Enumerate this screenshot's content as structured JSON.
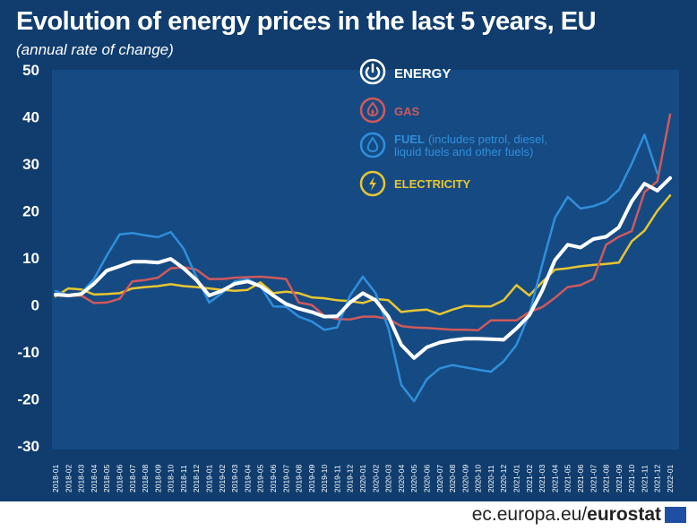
{
  "title": "Evolution of energy prices in the last 5 years, EU",
  "subtitle": "(annual rate of change)",
  "footer": {
    "site": "ec.europa.eu/",
    "brand": "eurostat"
  },
  "colors": {
    "background": "#103d6e",
    "plot": "#164a83",
    "energy": "#ffffff",
    "gas": "#d0595b",
    "fuel": "#2f8fdc",
    "electricity": "#e8c631"
  },
  "legend": [
    {
      "key": "energy",
      "label": "ENERGY",
      "note": "",
      "icon": "power-icon",
      "color": "#ffffff"
    },
    {
      "key": "gas",
      "label": "GAS",
      "note": "",
      "icon": "flame-icon",
      "color": "#d0595b"
    },
    {
      "key": "fuel",
      "label": "FUEL",
      "note": "(includes petrol, diesel,",
      "note2": "liquid fuels and other fuels)",
      "icon": "drop-icon",
      "color": "#2f8fdc"
    },
    {
      "key": "electricity",
      "label": "ELECTRICITY",
      "note": "",
      "icon": "lightning-icon",
      "color": "#e8c631"
    }
  ],
  "chart_data": {
    "type": "line",
    "title": "Evolution of energy prices in the last 5 years, EU",
    "subtitle": "(annual rate of change)",
    "ylim": [
      -30,
      50
    ],
    "yticks": [
      50,
      40,
      30,
      20,
      10,
      0,
      -10,
      -20,
      -30
    ],
    "grid": false,
    "legend_position": "top-right",
    "x": [
      "2018-01",
      "2018-02",
      "2018-03",
      "2018-04",
      "2018-05",
      "2018-06",
      "2018-07",
      "2018-08",
      "2018-09",
      "2018-10",
      "2018-11",
      "2018-12",
      "2019-01",
      "2019-02",
      "2019-03",
      "2019-04",
      "2019-05",
      "2019-06",
      "2019-07",
      "2019-08",
      "2019-09",
      "2019-10",
      "2019-11",
      "2019-12",
      "2020-01",
      "2020-02",
      "2020-03",
      "2020-04",
      "2020-05",
      "2020-06",
      "2020-07",
      "2020-08",
      "2020-09",
      "2020-10",
      "2020-11",
      "2020-12",
      "2021-01",
      "2021-02",
      "2021-03",
      "2021-04",
      "2021-05",
      "2021-06",
      "2021-07",
      "2021-08",
      "2021-09",
      "2021-10",
      "2021-11",
      "2021-12",
      "2022-01"
    ],
    "series": [
      {
        "name": "ENERGY",
        "key": "energy",
        "values": [
          2.2,
          2.0,
          2.3,
          4.5,
          7.3,
          8.2,
          9.2,
          9.2,
          9.0,
          9.8,
          7.8,
          5.3,
          2.0,
          3.0,
          4.5,
          5.0,
          4.0,
          2.0,
          0.2,
          -0.8,
          -1.5,
          -2.5,
          -2.4,
          0.5,
          2.5,
          1.0,
          -2.5,
          -8.5,
          -11.3,
          -9.0,
          -8.0,
          -7.5,
          -7.2,
          -7.2,
          -7.3,
          -7.4,
          -5.0,
          -2.2,
          3.0,
          9.5,
          12.8,
          12.2,
          14.0,
          14.5,
          16.5,
          22.0,
          25.8,
          24.3,
          27.0
        ]
      },
      {
        "name": "GAS",
        "key": "gas",
        "values": [
          2.0,
          1.9,
          2.0,
          0.4,
          0.5,
          1.3,
          5.0,
          5.3,
          5.8,
          7.8,
          8.0,
          7.5,
          5.5,
          5.5,
          5.8,
          5.9,
          6.0,
          5.8,
          5.5,
          0.5,
          0.0,
          -2.3,
          -3.0,
          -3.1,
          -2.5,
          -2.5,
          -3.0,
          -4.5,
          -4.8,
          -4.9,
          -5.1,
          -5.3,
          -5.3,
          -5.4,
          -3.3,
          -3.3,
          -3.3,
          -1.5,
          -0.5,
          1.5,
          3.8,
          4.2,
          5.5,
          12.8,
          14.5,
          15.7,
          24.0,
          26.3,
          40.5
        ]
      },
      {
        "name": "FUEL",
        "key": "fuel",
        "values": [
          3.0,
          2.0,
          2.5,
          5.5,
          10.5,
          15.0,
          15.3,
          14.8,
          14.4,
          15.5,
          12.0,
          6.0,
          0.5,
          2.5,
          5.0,
          5.5,
          4.0,
          -0.3,
          -0.4,
          -2.5,
          -3.5,
          -5.3,
          -4.8,
          2.0,
          6.0,
          2.5,
          -5.0,
          -17.0,
          -20.5,
          -15.8,
          -13.5,
          -12.8,
          -13.3,
          -13.8,
          -14.2,
          -12.0,
          -8.5,
          -2.0,
          8.5,
          18.5,
          23.0,
          20.5,
          21.0,
          22.0,
          24.5,
          30.0,
          36.2,
          28.0,
          null
        ]
      },
      {
        "name": "ELECTRICITY",
        "key": "electricity",
        "values": [
          1.8,
          3.5,
          3.3,
          2.2,
          2.3,
          2.5,
          3.5,
          3.8,
          4.0,
          4.4,
          4.0,
          3.8,
          3.5,
          3.2,
          3.0,
          3.2,
          4.8,
          2.5,
          2.8,
          2.5,
          1.6,
          1.4,
          1.0,
          0.8,
          0.4,
          1.3,
          1.0,
          -1.5,
          -1.2,
          -1.0,
          -2.0,
          -1.0,
          -0.2,
          -0.3,
          -0.3,
          1.0,
          4.2,
          2.0,
          4.8,
          7.5,
          7.8,
          8.2,
          8.5,
          8.7,
          9.0,
          13.5,
          15.8,
          20.0,
          23.3
        ]
      }
    ]
  }
}
